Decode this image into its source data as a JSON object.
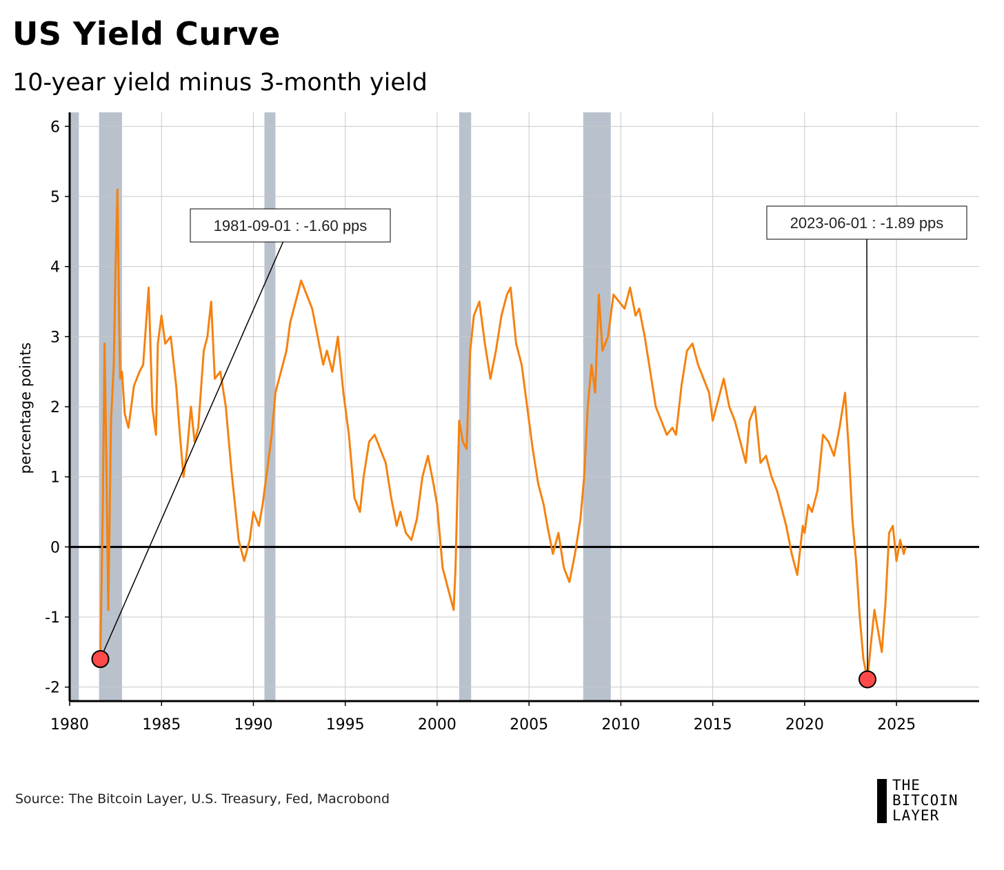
{
  "title": "US Yield Curve",
  "subtitle": "10-year yield minus 3-month yield",
  "source": "Source: The Bitcoin Layer, U.S. Treasury, Fed, Macrobond",
  "logo": {
    "line1": "THE",
    "line2": "BITCOIN",
    "line3": "LAYER"
  },
  "colors": {
    "series": "#f5820f",
    "recession": "#b9c1cd",
    "marker": "#ff4a4a",
    "grid": "#c8c8c8"
  },
  "chart_data": {
    "type": "line",
    "ylabel": "percentage points",
    "xlabel": "",
    "xlim": [
      1980.0,
      2029.5
    ],
    "ylim": [
      -2.2,
      6.2
    ],
    "x_ticks": [
      1980,
      1985,
      1990,
      1995,
      2000,
      2005,
      2010,
      2015,
      2020,
      2025
    ],
    "y_ticks": [
      -2,
      -1,
      0,
      1,
      2,
      3,
      4,
      5,
      6
    ],
    "grid": true,
    "zero_line": true,
    "recessions": [
      [
        1980.0,
        1980.5
      ],
      [
        1981.6,
        1982.85
      ],
      [
        1990.6,
        1991.2
      ],
      [
        2001.2,
        2001.85
      ],
      [
        2007.95,
        2009.45
      ]
    ],
    "annotations": [
      {
        "x": 1981.67,
        "y": -1.6,
        "text": "1981-09-01 : -1.60 pps"
      },
      {
        "x": 2023.42,
        "y": -1.89,
        "text": "2023-06-01 : -1.89 pps"
      }
    ],
    "series": [
      {
        "x": [
          1981.67,
          1981.8,
          1981.9,
          1982.0,
          1982.1,
          1982.25,
          1982.4,
          1982.5,
          1982.6,
          1982.7,
          1982.75,
          1982.85,
          1983.0,
          1983.2,
          1983.5,
          1983.8,
          1984.0,
          1984.3,
          1984.5,
          1984.7,
          1984.8,
          1985.0,
          1985.2,
          1985.5,
          1985.8,
          1986.0,
          1986.2,
          1986.4,
          1986.6,
          1986.8,
          1987.0,
          1987.3,
          1987.5,
          1987.7,
          1987.9,
          1988.2,
          1988.5,
          1988.8,
          1989.0,
          1989.2,
          1989.5,
          1989.8,
          1990.0,
          1990.3,
          1990.5,
          1990.8,
          1991.0,
          1991.2,
          1991.5,
          1991.8,
          1992.0,
          1992.3,
          1992.6,
          1992.9,
          1993.2,
          1993.5,
          1993.8,
          1994.0,
          1994.3,
          1994.6,
          1994.9,
          1995.2,
          1995.5,
          1995.8,
          1996.0,
          1996.3,
          1996.6,
          1996.9,
          1997.2,
          1997.5,
          1997.8,
          1998.0,
          1998.3,
          1998.6,
          1998.9,
          1999.2,
          1999.5,
          1999.8,
          2000.0,
          2000.3,
          2000.6,
          2000.9,
          2001.0,
          2001.2,
          2001.4,
          2001.6,
          2001.8,
          2002.0,
          2002.3,
          2002.6,
          2002.9,
          2003.2,
          2003.5,
          2003.8,
          2004.0,
          2004.3,
          2004.6,
          2004.9,
          2005.2,
          2005.5,
          2005.8,
          2006.0,
          2006.3,
          2006.6,
          2006.9,
          2007.2,
          2007.5,
          2007.8,
          2008.0,
          2008.2,
          2008.4,
          2008.6,
          2008.8,
          2009.0,
          2009.3,
          2009.6,
          2009.9,
          2010.2,
          2010.5,
          2010.8,
          2011.0,
          2011.3,
          2011.6,
          2011.9,
          2012.2,
          2012.5,
          2012.8,
          2013.0,
          2013.3,
          2013.6,
          2013.9,
          2014.2,
          2014.5,
          2014.8,
          2015.0,
          2015.3,
          2015.6,
          2015.9,
          2016.2,
          2016.5,
          2016.8,
          2017.0,
          2017.3,
          2017.6,
          2017.9,
          2018.2,
          2018.5,
          2018.8,
          2019.0,
          2019.3,
          2019.6,
          2019.9,
          2020.0,
          2020.2,
          2020.4,
          2020.7,
          2021.0,
          2021.3,
          2021.6,
          2021.9,
          2022.2,
          2022.4,
          2022.6,
          2022.8,
          2023.0,
          2023.2,
          2023.42,
          2023.6,
          2023.8,
          2024.0,
          2024.2,
          2024.4,
          2024.6,
          2024.8,
          2025.0,
          2025.2,
          2025.4,
          2025.5
        ],
        "values": [
          -1.6,
          0.5,
          2.9,
          1.2,
          -0.9,
          1.8,
          2.6,
          4.0,
          5.1,
          3.2,
          2.4,
          2.5,
          1.9,
          1.7,
          2.3,
          2.5,
          2.6,
          3.7,
          2.0,
          1.6,
          2.9,
          3.3,
          2.9,
          3.0,
          2.3,
          1.6,
          1.0,
          1.4,
          2.0,
          1.5,
          1.7,
          2.8,
          3.0,
          3.5,
          2.4,
          2.5,
          2.0,
          1.1,
          0.6,
          0.1,
          -0.2,
          0.1,
          0.5,
          0.3,
          0.6,
          1.2,
          1.6,
          2.2,
          2.5,
          2.8,
          3.2,
          3.5,
          3.8,
          3.6,
          3.4,
          3.0,
          2.6,
          2.8,
          2.5,
          3.0,
          2.2,
          1.6,
          0.7,
          0.5,
          1.0,
          1.5,
          1.6,
          1.4,
          1.2,
          0.7,
          0.3,
          0.5,
          0.2,
          0.1,
          0.4,
          1.0,
          1.3,
          0.9,
          0.6,
          -0.3,
          -0.6,
          -0.9,
          -0.3,
          1.8,
          1.5,
          1.4,
          2.8,
          3.3,
          3.5,
          2.9,
          2.4,
          2.8,
          3.3,
          3.6,
          3.7,
          2.9,
          2.6,
          2.0,
          1.4,
          0.9,
          0.6,
          0.3,
          -0.1,
          0.2,
          -0.3,
          -0.5,
          -0.1,
          0.4,
          1.0,
          2.0,
          2.6,
          2.2,
          3.6,
          2.8,
          3.0,
          3.6,
          3.5,
          3.4,
          3.7,
          3.3,
          3.4,
          3.0,
          2.5,
          2.0,
          1.8,
          1.6,
          1.7,
          1.6,
          2.3,
          2.8,
          2.9,
          2.6,
          2.4,
          2.2,
          1.8,
          2.1,
          2.4,
          2.0,
          1.8,
          1.5,
          1.2,
          1.8,
          2.0,
          1.2,
          1.3,
          1.0,
          0.8,
          0.5,
          0.3,
          -0.1,
          -0.4,
          0.3,
          0.2,
          0.6,
          0.5,
          0.8,
          1.6,
          1.5,
          1.3,
          1.7,
          2.2,
          1.4,
          0.4,
          -0.2,
          -1.0,
          -1.6,
          -1.89,
          -1.4,
          -0.9,
          -1.2,
          -1.5,
          -0.8,
          0.2,
          0.3,
          -0.2,
          0.1,
          -0.1,
          0.0
        ]
      }
    ]
  }
}
